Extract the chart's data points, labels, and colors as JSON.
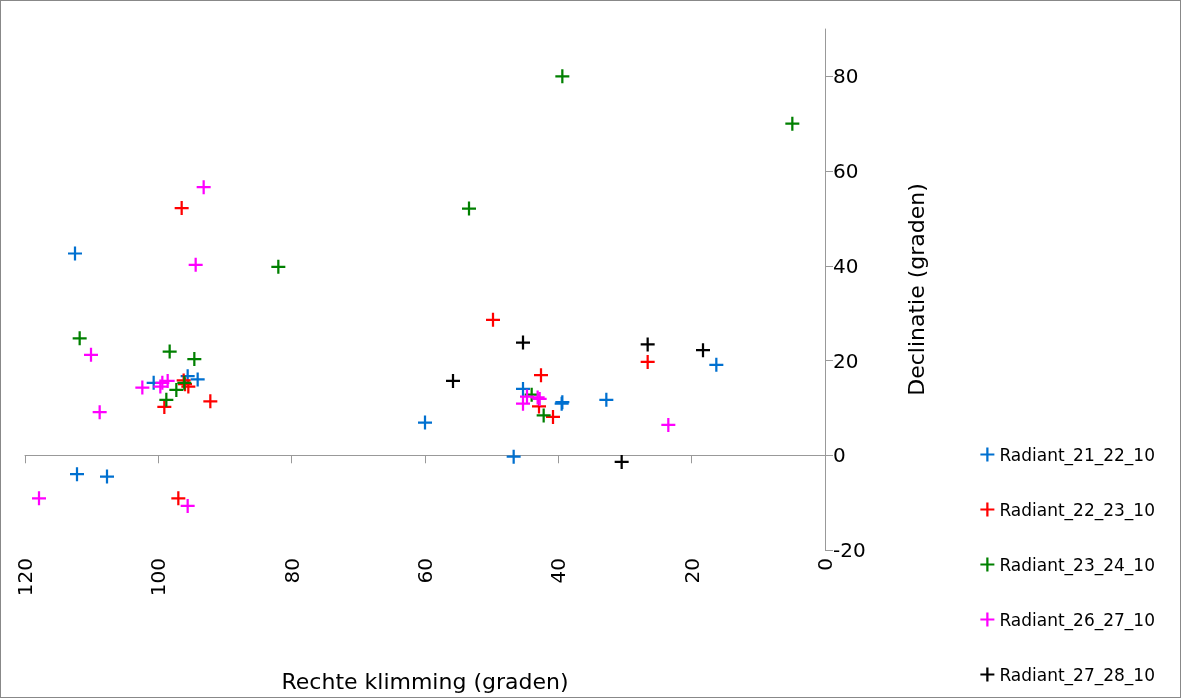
{
  "chart_data": {
    "type": "scatter",
    "xlabel": "Rechte klimming (graden)",
    "ylabel": "Declinatie (graden)",
    "xlim": [
      120,
      0
    ],
    "xticks": [
      0,
      20,
      40,
      60,
      80,
      100,
      120
    ],
    "ylim": [
      -20,
      90
    ],
    "yticks": [
      -20,
      0,
      20,
      40,
      60,
      80
    ],
    "legend": "right",
    "marker": "cross",
    "series": [
      {
        "name": "Radiant_21_22_10",
        "color": "#0070d0",
        "x": [
          112.5,
          100.7,
          95.6,
          94.1,
          112.2,
          107.7,
          60.0,
          45.3,
          39.4,
          39.5,
          32.8,
          16.3,
          46.7
        ],
        "values": [
          42.6,
          15.3,
          16.7,
          16.0,
          -4.0,
          -4.5,
          6.9,
          14.0,
          11.2,
          10.9,
          11.7,
          19.1,
          -0.3
        ]
      },
      {
        "name": "Radiant_22_23_10",
        "color": "#ff0000",
        "x": [
          96.5,
          92.2,
          99.1,
          97.0,
          96.0,
          95.5,
          96.2,
          49.8,
          42.6,
          42.9,
          40.8,
          26.6
        ],
        "values": [
          52.2,
          11.4,
          10.2,
          -9.1,
          15.0,
          14.5,
          15.8,
          28.6,
          16.9,
          10.3,
          8.1,
          19.7
        ]
      },
      {
        "name": "Radiant_23_24_10",
        "color": "#008000",
        "x": [
          39.4,
          4.9,
          53.4,
          82.0,
          111.8,
          98.3,
          94.6,
          98.8,
          97.3,
          96.1,
          44.0,
          42.2
        ],
        "values": [
          80,
          70,
          52.1,
          39.8,
          24.7,
          21.9,
          20.3,
          11.7,
          13.8,
          15.3,
          12.8,
          8.4
        ]
      },
      {
        "name": "Radiant_26_27_10",
        "color": "#ff00ff",
        "x": [
          93.2,
          94.4,
          110.1,
          108.8,
          102.4,
          99.4,
          98.6,
          99.7,
          117.9,
          95.6,
          23.5,
          45.3,
          44.7,
          43.1,
          42.8
        ],
        "values": [
          56.6,
          40.2,
          21.2,
          9.1,
          14.3,
          15.3,
          15.7,
          14.5,
          -9.1,
          -10.7,
          6.4,
          10.9,
          12.4,
          12.2,
          11.9
        ]
      },
      {
        "name": "Radiant_27_28_10",
        "color": "#000000",
        "x": [
          45.3,
          55.8,
          26.6,
          18.3,
          30.5
        ],
        "values": [
          23.8,
          15.7,
          23.4,
          22.2,
          -1.4
        ]
      }
    ]
  }
}
